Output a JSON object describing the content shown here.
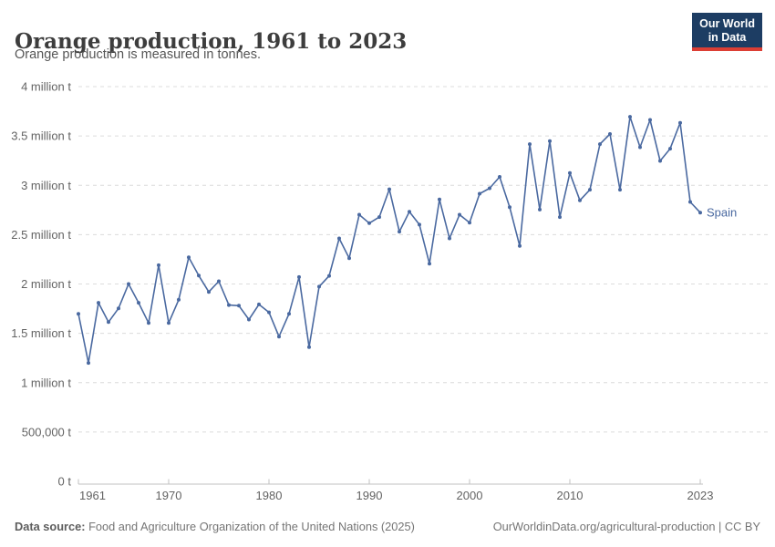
{
  "header": {
    "title": "Orange production, 1961 to 2023",
    "subtitle": "Orange production is measured in tonnes."
  },
  "logo": {
    "line1": "Our World",
    "line2": "in Data"
  },
  "chart_data": {
    "type": "line",
    "title": "Orange production, 1961 to 2023",
    "unit": "tonnes",
    "entity": "Spain",
    "xlim": [
      1961,
      2023
    ],
    "ylim": [
      0,
      4000000
    ],
    "grid": "horizontal-dashed",
    "legend_position": "end-of-line-label",
    "x_ticks": [
      1961,
      1970,
      1980,
      1990,
      2000,
      2010,
      2023
    ],
    "y_ticks": [
      {
        "value": 0,
        "label": "0 t"
      },
      {
        "value": 500000,
        "label": "500,000 t"
      },
      {
        "value": 1000000,
        "label": "1 million t"
      },
      {
        "value": 1500000,
        "label": "1.5 million t"
      },
      {
        "value": 2000000,
        "label": "2 million t"
      },
      {
        "value": 2500000,
        "label": "2.5 million t"
      },
      {
        "value": 3000000,
        "label": "3 million t"
      },
      {
        "value": 3500000,
        "label": "3.5 million t"
      },
      {
        "value": 4000000,
        "label": "4 million t"
      }
    ],
    "series": [
      {
        "name": "Spain",
        "color": "#4a69a0",
        "x": [
          1961,
          1962,
          1963,
          1964,
          1965,
          1966,
          1967,
          1968,
          1969,
          1970,
          1971,
          1972,
          1973,
          1974,
          1975,
          1976,
          1977,
          1978,
          1979,
          1980,
          1981,
          1982,
          1983,
          1984,
          1985,
          1986,
          1987,
          1988,
          1989,
          1990,
          1991,
          1992,
          1993,
          1994,
          1995,
          1996,
          1997,
          1998,
          1999,
          2000,
          2001,
          2002,
          2003,
          2004,
          2005,
          2006,
          2007,
          2008,
          2009,
          2010,
          2011,
          2012,
          2013,
          2014,
          2015,
          2016,
          2017,
          2018,
          2019,
          2020,
          2021,
          2022,
          2023
        ],
        "values": [
          1698000,
          1200000,
          1810000,
          1614000,
          1753000,
          2000000,
          1810000,
          1605000,
          2190000,
          1605000,
          1840000,
          2270000,
          2085000,
          1920000,
          2028000,
          1787000,
          1780000,
          1640000,
          1793000,
          1713000,
          1467000,
          1698000,
          2070000,
          1360000,
          1973000,
          2082000,
          2462000,
          2261000,
          2702000,
          2616000,
          2678000,
          2960000,
          2530000,
          2733000,
          2601000,
          2206000,
          2856000,
          2462000,
          2702000,
          2622000,
          2915000,
          2970000,
          3085000,
          2779000,
          2385000,
          3417000,
          2754000,
          3448000,
          2678000,
          3124000,
          2847000,
          2955000,
          3417000,
          3520000,
          2955000,
          3694000,
          3386000,
          3663000,
          3247000,
          3371000,
          3633000,
          2831000,
          2723000
        ]
      }
    ]
  },
  "footer": {
    "source_label": "Data source:",
    "source_text": " Food and Agriculture Organization of the United Nations (2025)",
    "credit": "OurWorldinData.org/agricultural-production | CC BY"
  },
  "colors": {
    "line": "#4a69a0",
    "grid": "#dcdcdc",
    "axis": "#c2c2c2",
    "tick_text": "#636363",
    "logo_bg": "#1d3d63",
    "logo_red": "#dc3e34"
  }
}
